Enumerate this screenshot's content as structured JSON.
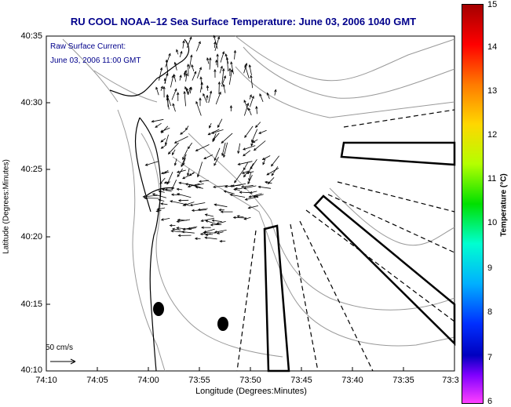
{
  "title": "RU COOL  NOAA–12  Sea Surface Temperature:  June 03, 2006 1040 GMT",
  "legend": {
    "line1": "Raw Surface Current:",
    "line2": "June 03, 2006 11:00 GMT",
    "scale_label": "50 cm/s"
  },
  "axes": {
    "xlabel": "Longitude (Degrees:Minutes)",
    "ylabel": "Latitude (Degrees:Minutes)",
    "xticks": [
      "74:10",
      "74:05",
      "74:00",
      "73:55",
      "73:50",
      "73:45",
      "73:40",
      "73:35",
      "73:3"
    ],
    "yticks": [
      "40:35",
      "40:30",
      "40:25",
      "40:20",
      "40:15",
      "40:10"
    ]
  },
  "colorbar": {
    "label": "Temperature (°C)",
    "ticks": [
      "15",
      "14",
      "13",
      "12",
      "11",
      "10",
      "9",
      "8",
      "7",
      "6"
    ]
  },
  "colors": {
    "title": "#00008b",
    "legend": "#00008b",
    "coast": "#000000",
    "contours": "#999999"
  }
}
